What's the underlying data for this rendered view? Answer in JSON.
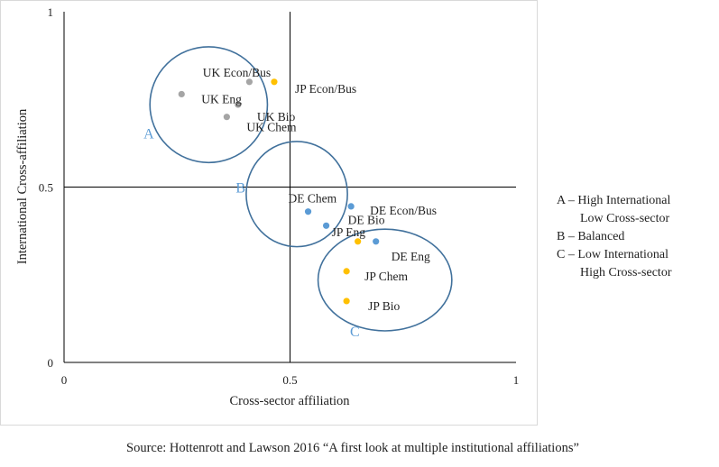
{
  "chart_data": {
    "type": "scatter",
    "xlabel": "Cross-sector affiliation",
    "ylabel": "International Cross-affiliation",
    "xlim": [
      0,
      1
    ],
    "ylim": [
      0,
      1
    ],
    "x_ticks": [
      "0",
      "0.5",
      "1"
    ],
    "y_ticks": [
      "0",
      "0.5",
      "1"
    ],
    "grid": false,
    "quadrant_lines": {
      "x": 0.5,
      "y": 0.5
    },
    "colors": {
      "UK": "#a5a5a5",
      "DE": "#5b9bd5",
      "JP": "#ffc000",
      "circle": "#41719c",
      "group_label": "#5b9bd5"
    },
    "series": [
      {
        "group": "UK",
        "points": [
          {
            "label": "UK Econ/Bus",
            "x": 0.41,
            "y": 0.8
          },
          {
            "label": "UK Eng",
            "x": 0.26,
            "y": 0.765
          },
          {
            "label": "UK Bio",
            "x": 0.385,
            "y": 0.735
          },
          {
            "label": "UK Chem",
            "x": 0.36,
            "y": 0.7
          }
        ]
      },
      {
        "group": "JP",
        "points": [
          {
            "label": "JP Econ/Bus",
            "x": 0.465,
            "y": 0.8
          },
          {
            "label": "JP Eng",
            "x": 0.65,
            "y": 0.345
          },
          {
            "label": "JP Chem",
            "x": 0.625,
            "y": 0.26
          },
          {
            "label": "JP Bio",
            "x": 0.625,
            "y": 0.175
          }
        ]
      },
      {
        "group": "DE",
        "points": [
          {
            "label": "DE Chem",
            "x": 0.54,
            "y": 0.43
          },
          {
            "label": "DE Econ/Bus",
            "x": 0.635,
            "y": 0.445
          },
          {
            "label": "DE Bio",
            "x": 0.58,
            "y": 0.39
          },
          {
            "label": "DE Eng",
            "x": 0.69,
            "y": 0.345
          }
        ]
      }
    ],
    "clusters": [
      {
        "label": "A",
        "cx": 0.32,
        "cy": 0.735,
        "rx": 0.13,
        "ry": 0.165
      },
      {
        "label": "B",
        "cx": 0.515,
        "cy": 0.48,
        "rx": 0.112,
        "ry": 0.15
      },
      {
        "label": "C",
        "cx": 0.71,
        "cy": 0.235,
        "rx": 0.148,
        "ry": 0.145
      }
    ],
    "legend": [
      {
        "line1": "A – High International",
        "line2": "Low Cross-sector"
      },
      {
        "line1": "B – Balanced",
        "line2": ""
      },
      {
        "line1": "C – Low International",
        "line2": "High Cross-sector"
      }
    ]
  },
  "source": "Source: Hottenrott and Lawson 2016 “A first look at multiple institutional affiliations”"
}
